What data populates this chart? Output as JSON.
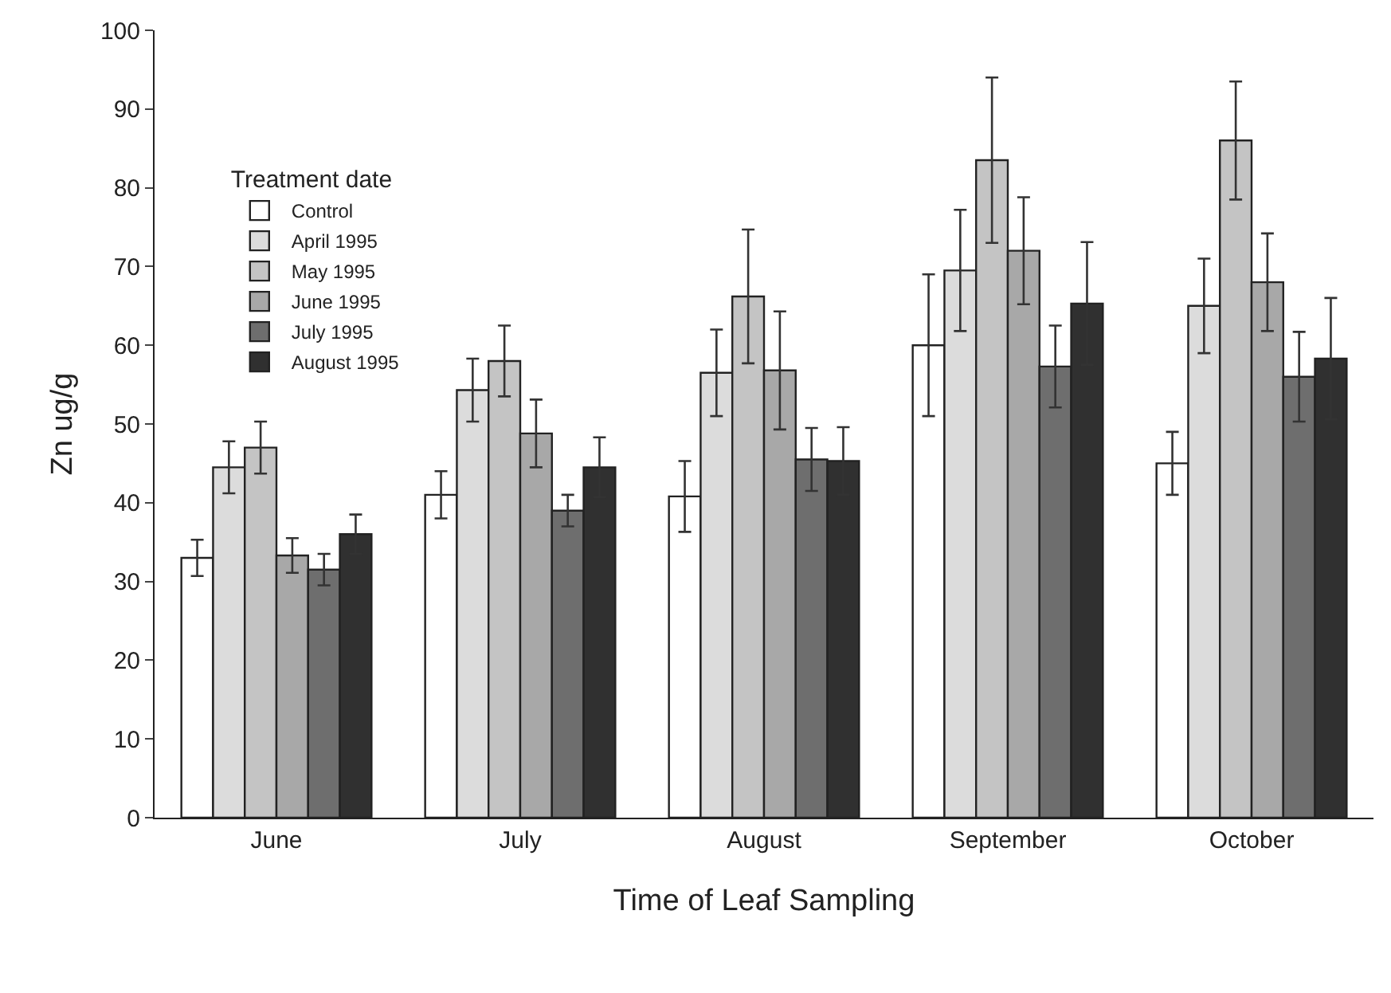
{
  "chart_data": {
    "type": "bar",
    "xlabel": "Time of Leaf Sampling",
    "ylabel": "Zn ug/g",
    "legend_title": "Treatment date",
    "categories": [
      "June",
      "July",
      "August",
      "September",
      "October"
    ],
    "series": [
      {
        "name": "Control",
        "color": "#ffffff",
        "values": [
          33,
          41,
          40.8,
          60,
          45
        ],
        "errors": [
          2.3,
          3,
          4.5,
          9,
          4
        ]
      },
      {
        "name": "April 1995",
        "color": "#dcdcdc",
        "values": [
          44.5,
          54.3,
          56.5,
          69.5,
          65
        ],
        "errors": [
          3.3,
          4,
          5.5,
          7.7,
          6
        ]
      },
      {
        "name": "May 1995",
        "color": "#c4c4c4",
        "values": [
          47,
          58,
          66.2,
          83.5,
          86
        ],
        "errors": [
          3.3,
          4.5,
          8.5,
          10.5,
          7.5
        ]
      },
      {
        "name": "June 1995",
        "color": "#a8a8a8",
        "values": [
          33.3,
          48.8,
          56.8,
          72,
          68
        ],
        "errors": [
          2.2,
          4.3,
          7.5,
          6.8,
          6.2
        ]
      },
      {
        "name": "July 1995",
        "color": "#6e6e6e",
        "values": [
          31.5,
          39,
          45.5,
          57.3,
          56
        ],
        "errors": [
          2,
          2,
          4,
          5.2,
          5.7
        ]
      },
      {
        "name": "August 1995",
        "color": "#303030",
        "values": [
          36,
          44.5,
          45.3,
          65.3,
          58.3
        ],
        "errors": [
          2.5,
          3.8,
          4.3,
          7.8,
          7.7
        ]
      }
    ],
    "ylim": [
      0,
      100
    ],
    "yticks": [
      0,
      10,
      20,
      30,
      40,
      50,
      60,
      70,
      80,
      90,
      100
    ],
    "grid": false,
    "legend": "top left"
  }
}
